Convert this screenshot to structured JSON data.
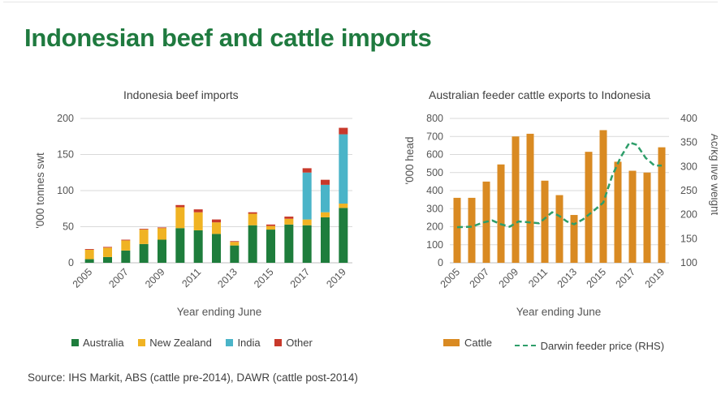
{
  "title": "Indonesian beef and cattle imports",
  "source": "Source: IHS Markit, ABS (cattle pre-2014), DAWR (cattle post-2014)",
  "chart_data": [
    {
      "type": "bar",
      "stacked": true,
      "title": "Indonesia beef imports",
      "xlabel": "Year ending June",
      "ylabel": "'000 tonnes swt",
      "ylim": [
        0,
        200
      ],
      "yticks": [
        0,
        50,
        100,
        150,
        200
      ],
      "categories": [
        "2005",
        "2006",
        "2007",
        "2008",
        "2009",
        "2010",
        "2011",
        "2012",
        "2013",
        "2014",
        "2015",
        "2016",
        "2017",
        "2018",
        "2019"
      ],
      "xtick_labels": [
        "2005",
        "2007",
        "2009",
        "2011",
        "2013",
        "2015",
        "2017",
        "2019"
      ],
      "legend_position": "bottom",
      "grid": true,
      "series": [
        {
          "name": "Australia",
          "color": "#1e7d3c",
          "values": [
            5,
            8,
            17,
            26,
            32,
            48,
            45,
            40,
            24,
            52,
            46,
            53,
            52,
            63,
            76
          ]
        },
        {
          "name": "New Zealand",
          "color": "#f0b323",
          "values": [
            13,
            13,
            14,
            20,
            16,
            29,
            25,
            16,
            5,
            16,
            5,
            8,
            8,
            7,
            6
          ]
        },
        {
          "name": "India",
          "color": "#4ab4c8",
          "values": [
            0,
            0,
            0,
            0,
            0,
            0,
            0,
            0,
            0,
            0,
            0,
            0,
            65,
            38,
            96
          ]
        },
        {
          "name": "Other",
          "color": "#c8392b",
          "values": [
            1,
            1,
            1,
            1,
            1,
            3,
            4,
            4,
            1,
            2,
            2,
            3,
            6,
            7,
            9
          ]
        }
      ]
    },
    {
      "type": "bar",
      "title": "Australian feeder cattle exports to Indonesia",
      "xlabel": "Year ending June",
      "ylabel": "'000 head",
      "ylabel_right": "Ac/kg live weight",
      "ylim": [
        0,
        800
      ],
      "yticks": [
        0,
        100,
        200,
        300,
        400,
        500,
        600,
        700,
        800
      ],
      "ylim_right": [
        100,
        400
      ],
      "yticks_right": [
        100,
        150,
        200,
        250,
        300,
        350,
        400
      ],
      "categories": [
        "2005",
        "2006",
        "2007",
        "2008",
        "2009",
        "2010",
        "2011",
        "2012",
        "2013",
        "2014",
        "2015",
        "2016",
        "2017",
        "2018",
        "2019"
      ],
      "xtick_labels": [
        "2005",
        "2007",
        "2009",
        "2011",
        "2013",
        "2015",
        "2017",
        "2019"
      ],
      "legend_position": "bottom",
      "grid": true,
      "series": [
        {
          "name": "Cattle",
          "type": "bar",
          "axis": "left",
          "color": "#d98a22",
          "values": [
            360,
            360,
            450,
            545,
            700,
            715,
            455,
            375,
            265,
            615,
            735,
            560,
            510,
            500,
            640
          ]
        },
        {
          "name": "Darwin feeder price (RHS)",
          "type": "line",
          "style": "dashed",
          "axis": "right",
          "color": "#2e9e6a",
          "x": [
            2005,
            2006,
            2006.8,
            2007.4,
            2008,
            2008.6,
            2009.2,
            2010,
            2010.6,
            2011.5,
            2012,
            2012.5,
            2013,
            2013.6,
            2014.3,
            2015,
            2015.6,
            2016.2,
            2016.8,
            2017.3,
            2017.9,
            2018.5,
            2019
          ],
          "values": [
            174,
            175,
            184,
            188,
            180,
            175,
            186,
            184,
            182,
            205,
            197,
            186,
            180,
            190,
            207,
            225,
            280,
            320,
            350,
            345,
            318,
            302,
            302
          ]
        }
      ]
    }
  ]
}
